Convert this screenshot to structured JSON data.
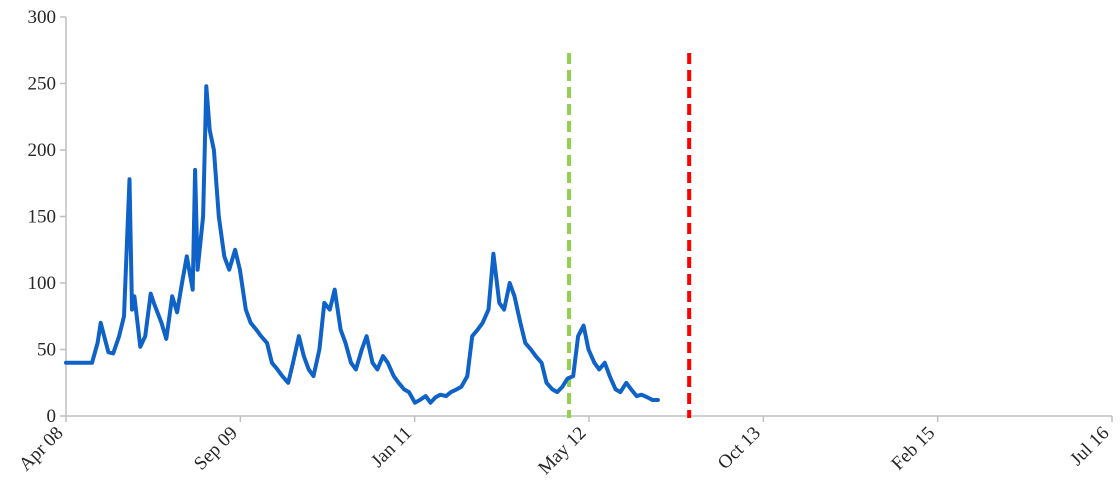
{
  "chart_data": {
    "type": "line",
    "title": "",
    "xlabel": "",
    "ylabel": "",
    "ylim": [
      0,
      300
    ],
    "yticks": [
      "0",
      "50",
      "100",
      "150",
      "200",
      "250",
      "300"
    ],
    "xlim": [
      "2008-04",
      "2016-07"
    ],
    "xticks": [
      "Apr 08",
      "Sep 09",
      "Jan 11",
      "May 12",
      "Oct 13",
      "Feb 15",
      "Jul 16"
    ],
    "grid": false,
    "legend": "none",
    "colors": {
      "series": "#0f62c8",
      "vline_green": "#92d050",
      "vline_red": "#ff0000",
      "axis": "#bfbfbf"
    },
    "series": [
      {
        "x": [
          "2008-04-01",
          "2008-05-15",
          "2008-06-15",
          "2008-07-01",
          "2008-07-10",
          "2008-08-01",
          "2008-08-15",
          "2008-09-01",
          "2008-09-15",
          "2008-10-01",
          "2008-10-08",
          "2008-10-15",
          "2008-11-01",
          "2008-11-15",
          "2008-12-01",
          "2008-12-10",
          "2009-01-01",
          "2009-01-15",
          "2009-02-01",
          "2009-02-15",
          "2009-03-01",
          "2009-03-15",
          "2009-04-01",
          "2009-04-08",
          "2009-04-15",
          "2009-05-01",
          "2009-05-10",
          "2009-05-20",
          "2009-06-01",
          "2009-06-15",
          "2009-07-01",
          "2009-07-15",
          "2009-08-01",
          "2009-08-15",
          "2009-09-01",
          "2009-09-15",
          "2009-10-01",
          "2009-10-15",
          "2009-11-01",
          "2009-11-15",
          "2009-12-01",
          "2009-12-15",
          "2010-01-01",
          "2010-01-15",
          "2010-02-01",
          "2010-02-15",
          "2010-03-01",
          "2010-03-15",
          "2010-04-01",
          "2010-04-15",
          "2010-05-01",
          "2010-05-15",
          "2010-06-01",
          "2010-06-15",
          "2010-07-01",
          "2010-07-15",
          "2010-08-01",
          "2010-08-15",
          "2010-09-01",
          "2010-09-15",
          "2010-10-01",
          "2010-10-15",
          "2010-11-01",
          "2010-11-15",
          "2010-12-01",
          "2010-12-15",
          "2011-01-01",
          "2011-01-15",
          "2011-02-01",
          "2011-02-15",
          "2011-03-01",
          "2011-03-15",
          "2011-04-01",
          "2011-04-15",
          "2011-05-01",
          "2011-05-15",
          "2011-06-01",
          "2011-06-15",
          "2011-07-01",
          "2011-07-15",
          "2011-08-01",
          "2011-08-15",
          "2011-09-01",
          "2011-09-15",
          "2011-10-01",
          "2011-10-15",
          "2011-11-01",
          "2011-11-15",
          "2011-12-01",
          "2011-12-15",
          "2012-01-01",
          "2012-01-15",
          "2012-02-01",
          "2012-02-15",
          "2012-03-01",
          "2012-03-15",
          "2012-04-01",
          "2012-04-15",
          "2012-05-01",
          "2012-05-15",
          "2012-06-01",
          "2012-06-15",
          "2012-07-01",
          "2012-07-15",
          "2012-08-01",
          "2012-08-15",
          "2012-09-01",
          "2012-09-15",
          "2012-10-01",
          "2012-10-15",
          "2012-11-01",
          "2012-11-15",
          "2012-12-01"
        ],
        "values": [
          40,
          40,
          40,
          55,
          70,
          48,
          47,
          60,
          75,
          178,
          80,
          90,
          52,
          60,
          92,
          85,
          70,
          58,
          90,
          78,
          100,
          120,
          95,
          185,
          110,
          150,
          248,
          215,
          200,
          150,
          120,
          110,
          125,
          110,
          80,
          70,
          65,
          60,
          55,
          40,
          35,
          30,
          25,
          40,
          60,
          45,
          35,
          30,
          50,
          85,
          80,
          95,
          65,
          55,
          40,
          35,
          50,
          60,
          40,
          35,
          45,
          40,
          30,
          25,
          20,
          18,
          10,
          12,
          15,
          10,
          14,
          16,
          15,
          18,
          20,
          22,
          30,
          60,
          65,
          70,
          80,
          122,
          85,
          80,
          100,
          90,
          70,
          55,
          50,
          45,
          40,
          25,
          20,
          18,
          22,
          28,
          30,
          60,
          68,
          50,
          40,
          35,
          40,
          30,
          20,
          18,
          25,
          20,
          15,
          16,
          14,
          12,
          12
        ]
      }
    ],
    "vlines": [
      {
        "x": "2012-03-20",
        "style": "dashed",
        "color": "green"
      },
      {
        "x": "2013-03-01",
        "style": "dashed",
        "color": "red"
      }
    ]
  }
}
